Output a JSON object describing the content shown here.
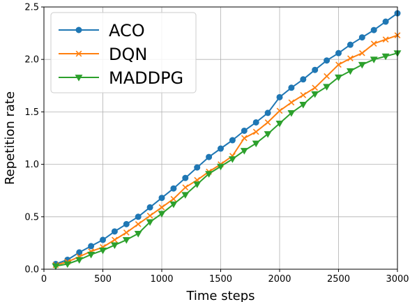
{
  "chart_data": {
    "type": "line",
    "xlabel": "Time steps",
    "ylabel": "Repetition rate",
    "xlim": [
      0,
      3000
    ],
    "ylim": [
      0,
      2.5
    ],
    "xticks": [
      "0",
      "500",
      "1000",
      "1500",
      "2000",
      "2500",
      "3000"
    ],
    "yticks": [
      "0.0",
      "0.5",
      "1.0",
      "1.5",
      "2.0",
      "2.5"
    ],
    "grid": true,
    "legend_position": "top-left",
    "x": [
      100,
      200,
      300,
      400,
      500,
      600,
      700,
      800,
      900,
      1000,
      1100,
      1200,
      1300,
      1400,
      1500,
      1600,
      1700,
      1800,
      1900,
      2000,
      2100,
      2200,
      2300,
      2400,
      2500,
      2600,
      2700,
      2800,
      2900,
      3000
    ],
    "series": [
      {
        "name": "ACO",
        "color": "#1f77b4",
        "marker": "circle",
        "values": [
          0.05,
          0.09,
          0.16,
          0.22,
          0.28,
          0.36,
          0.43,
          0.5,
          0.59,
          0.68,
          0.77,
          0.87,
          0.97,
          1.07,
          1.15,
          1.23,
          1.32,
          1.4,
          1.49,
          1.64,
          1.73,
          1.81,
          1.9,
          1.99,
          2.06,
          2.14,
          2.21,
          2.28,
          2.36,
          2.44
        ]
      },
      {
        "name": "DQN",
        "color": "#ff7f0e",
        "marker": "x",
        "values": [
          0.04,
          0.07,
          0.12,
          0.17,
          0.21,
          0.28,
          0.35,
          0.43,
          0.51,
          0.59,
          0.67,
          0.78,
          0.85,
          0.93,
          1.0,
          1.08,
          1.25,
          1.31,
          1.4,
          1.51,
          1.59,
          1.66,
          1.73,
          1.84,
          1.95,
          2.01,
          2.06,
          2.15,
          2.19,
          2.23
        ]
      },
      {
        "name": "MADDPG",
        "color": "#2ca02c",
        "marker": "triangle-down",
        "values": [
          0.03,
          0.05,
          0.09,
          0.14,
          0.18,
          0.23,
          0.28,
          0.34,
          0.45,
          0.53,
          0.62,
          0.71,
          0.81,
          0.91,
          0.98,
          1.05,
          1.13,
          1.2,
          1.29,
          1.39,
          1.49,
          1.57,
          1.67,
          1.74,
          1.83,
          1.89,
          1.95,
          2.0,
          2.03,
          2.06
        ]
      }
    ]
  }
}
